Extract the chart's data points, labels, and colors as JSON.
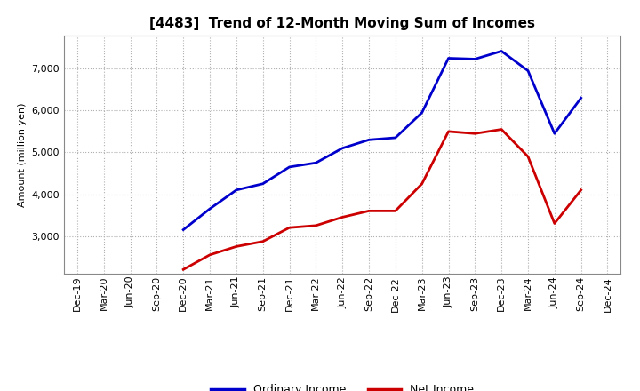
{
  "title": "[4483]  Trend of 12-Month Moving Sum of Incomes",
  "ylabel": "Amount (million yen)",
  "background_color": "#ffffff",
  "grid_color": "#b0b0b0",
  "ordinary_income_color": "#0000cc",
  "net_income_color": "#cc0000",
  "line_width": 2.0,
  "x_labels": [
    "Dec-19",
    "Mar-20",
    "Jun-20",
    "Sep-20",
    "Dec-20",
    "Mar-21",
    "Jun-21",
    "Sep-21",
    "Dec-21",
    "Mar-22",
    "Jun-22",
    "Sep-22",
    "Dec-22",
    "Mar-23",
    "Jun-23",
    "Sep-23",
    "Dec-23",
    "Mar-24",
    "Jun-24",
    "Sep-24",
    "Dec-24"
  ],
  "ordinary_income": [
    null,
    null,
    null,
    null,
    3150,
    3650,
    4100,
    4250,
    4650,
    4750,
    5100,
    5300,
    5350,
    5950,
    7250,
    7230,
    7420,
    6950,
    5450,
    6300,
    null
  ],
  "net_income": [
    null,
    null,
    null,
    null,
    2200,
    2550,
    2750,
    2870,
    3200,
    3250,
    3450,
    3600,
    3600,
    4250,
    5500,
    5450,
    5550,
    4900,
    3300,
    4100,
    null
  ],
  "ylim": [
    2100,
    7800
  ],
  "yticks": [
    3000,
    4000,
    5000,
    6000,
    7000
  ],
  "legend_labels": [
    "Ordinary Income",
    "Net Income"
  ],
  "title_fontsize": 11,
  "axis_label_fontsize": 8,
  "tick_fontsize": 8,
  "legend_fontsize": 9
}
